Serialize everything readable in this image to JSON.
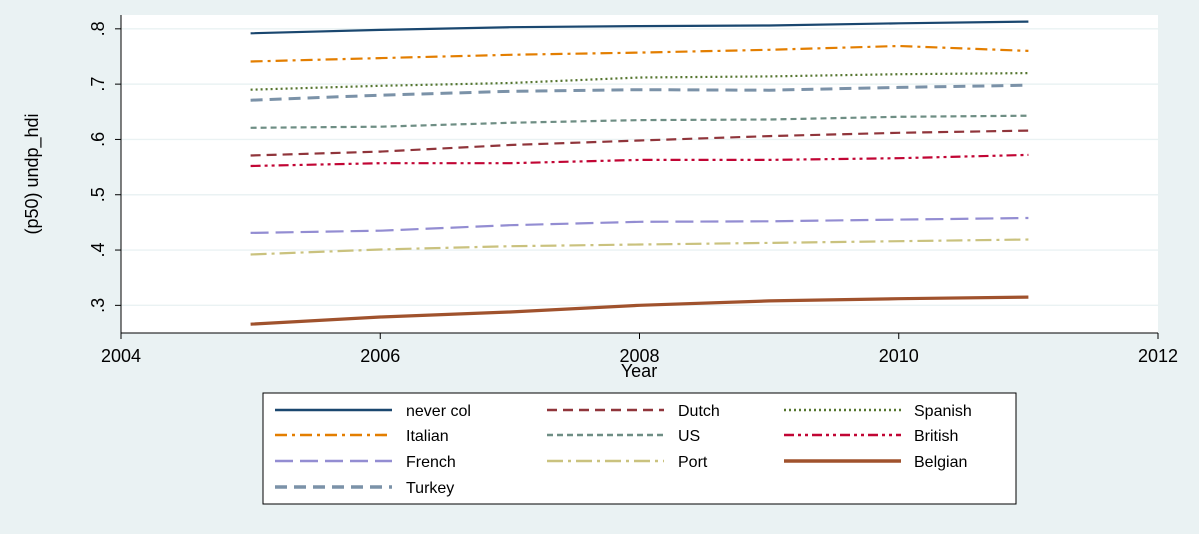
{
  "chart_data": {
    "type": "line",
    "title": "",
    "xlabel": "Year",
    "ylabel": "(p50) undp_hdi",
    "xlim": [
      2004,
      2012
    ],
    "ylim": [
      0.25,
      0.825
    ],
    "x_ticks": [
      2004,
      2006,
      2008,
      2010,
      2012
    ],
    "y_ticks": [
      0.3,
      0.4,
      0.5,
      0.6,
      0.7,
      0.8
    ],
    "y_tick_labels": [
      ".3",
      ".4",
      ".5",
      ".6",
      ".7",
      ".8"
    ],
    "grid": "horizontal",
    "legend_position": "bottom",
    "x": [
      2005,
      2006,
      2007,
      2008,
      2009,
      2010,
      2011
    ],
    "series": [
      {
        "name": "never col",
        "color": "#1a476f",
        "dash": "solid",
        "values": [
          0.792,
          0.798,
          0.803,
          0.805,
          0.806,
          0.81,
          0.813
        ]
      },
      {
        "name": "Dutch",
        "color": "#90353b",
        "dash": "dash",
        "values": [
          0.571,
          0.578,
          0.59,
          0.598,
          0.606,
          0.612,
          0.616
        ]
      },
      {
        "name": "Spanish",
        "color": "#55752f",
        "dash": "dot",
        "values": [
          0.69,
          0.697,
          0.702,
          0.712,
          0.714,
          0.718,
          0.72
        ]
      },
      {
        "name": "Italian",
        "color": "#e37e00",
        "dash": "dashdot",
        "values": [
          0.741,
          0.747,
          0.753,
          0.757,
          0.762,
          0.769,
          0.76
        ]
      },
      {
        "name": "US",
        "color": "#6e8e84",
        "dash": "shortdash",
        "values": [
          0.621,
          0.623,
          0.63,
          0.635,
          0.636,
          0.641,
          0.643
        ]
      },
      {
        "name": "British",
        "color": "#c10534",
        "dash": "dashdotdot",
        "values": [
          0.552,
          0.557,
          0.557,
          0.563,
          0.563,
          0.566,
          0.572
        ]
      },
      {
        "name": "French",
        "color": "#938dd2",
        "dash": "longdash",
        "values": [
          0.431,
          0.435,
          0.445,
          0.451,
          0.452,
          0.455,
          0.458
        ]
      },
      {
        "name": "Port",
        "color": "#cac27e",
        "dash": "longdashdot",
        "values": [
          0.392,
          0.401,
          0.407,
          0.41,
          0.413,
          0.416,
          0.419
        ]
      },
      {
        "name": "Belgian",
        "color": "#a0522d",
        "dash": "solid-thick",
        "values": [
          0.266,
          0.279,
          0.288,
          0.3,
          0.308,
          0.312,
          0.315
        ]
      },
      {
        "name": "Turkey",
        "color": "#7b92a8",
        "dash": "dash-thick",
        "values": [
          0.671,
          0.68,
          0.687,
          0.69,
          0.689,
          0.694,
          0.698
        ]
      }
    ]
  }
}
